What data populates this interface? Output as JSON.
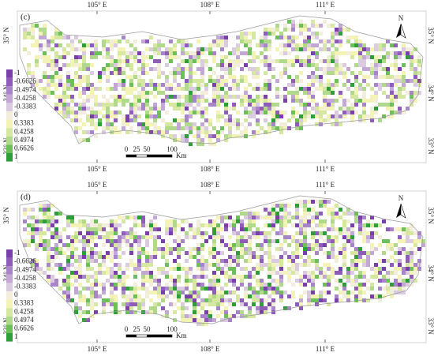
{
  "panels": [
    {
      "label": "(c)",
      "lon_labels_top": [
        "105° E",
        "108° E",
        "111° E"
      ],
      "lon_labels_bottom": [
        "105° E",
        "108° E",
        "111° E"
      ],
      "lat_labels_left": [
        "35° N",
        "34° N",
        "33° N"
      ],
      "lat_labels_right": [
        "35° N",
        "34° N",
        "33° N"
      ],
      "north": "N",
      "legend": [
        {
          "label": "-1",
          "color": "#7b3fa9"
        },
        {
          "label": "-0.6626",
          "color": "#8f5cb9"
        },
        {
          "label": "-0.4974",
          "color": "#a884c8"
        },
        {
          "label": "-0.4258",
          "color": "#c3a8d6"
        },
        {
          "label": "-0.3383",
          "color": "#dacbe1"
        },
        {
          "label": "0",
          "color": "#f2eedb"
        },
        {
          "label": "0.3383",
          "color": "#f3f3b6"
        },
        {
          "label": "0.4258",
          "color": "#d5e7a1"
        },
        {
          "label": "0.4974",
          "color": "#b1d98b"
        },
        {
          "label": "0.6626",
          "color": "#6dbf59"
        },
        {
          "label": "1",
          "color": "#2e9e3a"
        }
      ],
      "scale": {
        "ticks": [
          "0",
          "25",
          "50",
          "100"
        ],
        "unit": "Km"
      }
    },
    {
      "label": "(d)",
      "lon_labels_top": [
        "105° E",
        "108° E",
        "111° E"
      ],
      "lon_labels_bottom": [
        "105° E",
        "108° E",
        "111° E"
      ],
      "lat_labels_left": [
        "35° N",
        "34° N",
        "33° N"
      ],
      "lat_labels_right": [
        "35° N",
        "34° N",
        "33° N"
      ],
      "north": "N",
      "legend": [
        {
          "label": "-1",
          "color": "#7b3fa9"
        },
        {
          "label": "-0.6626",
          "color": "#8f5cb9"
        },
        {
          "label": "-0.4974",
          "color": "#a884c8"
        },
        {
          "label": "-0.4258",
          "color": "#c3a8d6"
        },
        {
          "label": "-0.3383",
          "color": "#dacbe1"
        },
        {
          "label": "0",
          "color": "#f2eedb"
        },
        {
          "label": "0.3383",
          "color": "#f3f3b6"
        },
        {
          "label": "0.4258",
          "color": "#d5e7a1"
        },
        {
          "label": "0.4974",
          "color": "#b1d98b"
        },
        {
          "label": "0.6626",
          "color": "#6dbf59"
        },
        {
          "label": "1",
          "color": "#2e9e3a"
        }
      ],
      "scale": {
        "ticks": [
          "0",
          "25",
          "50",
          "100"
        ],
        "unit": "Km"
      }
    }
  ]
}
